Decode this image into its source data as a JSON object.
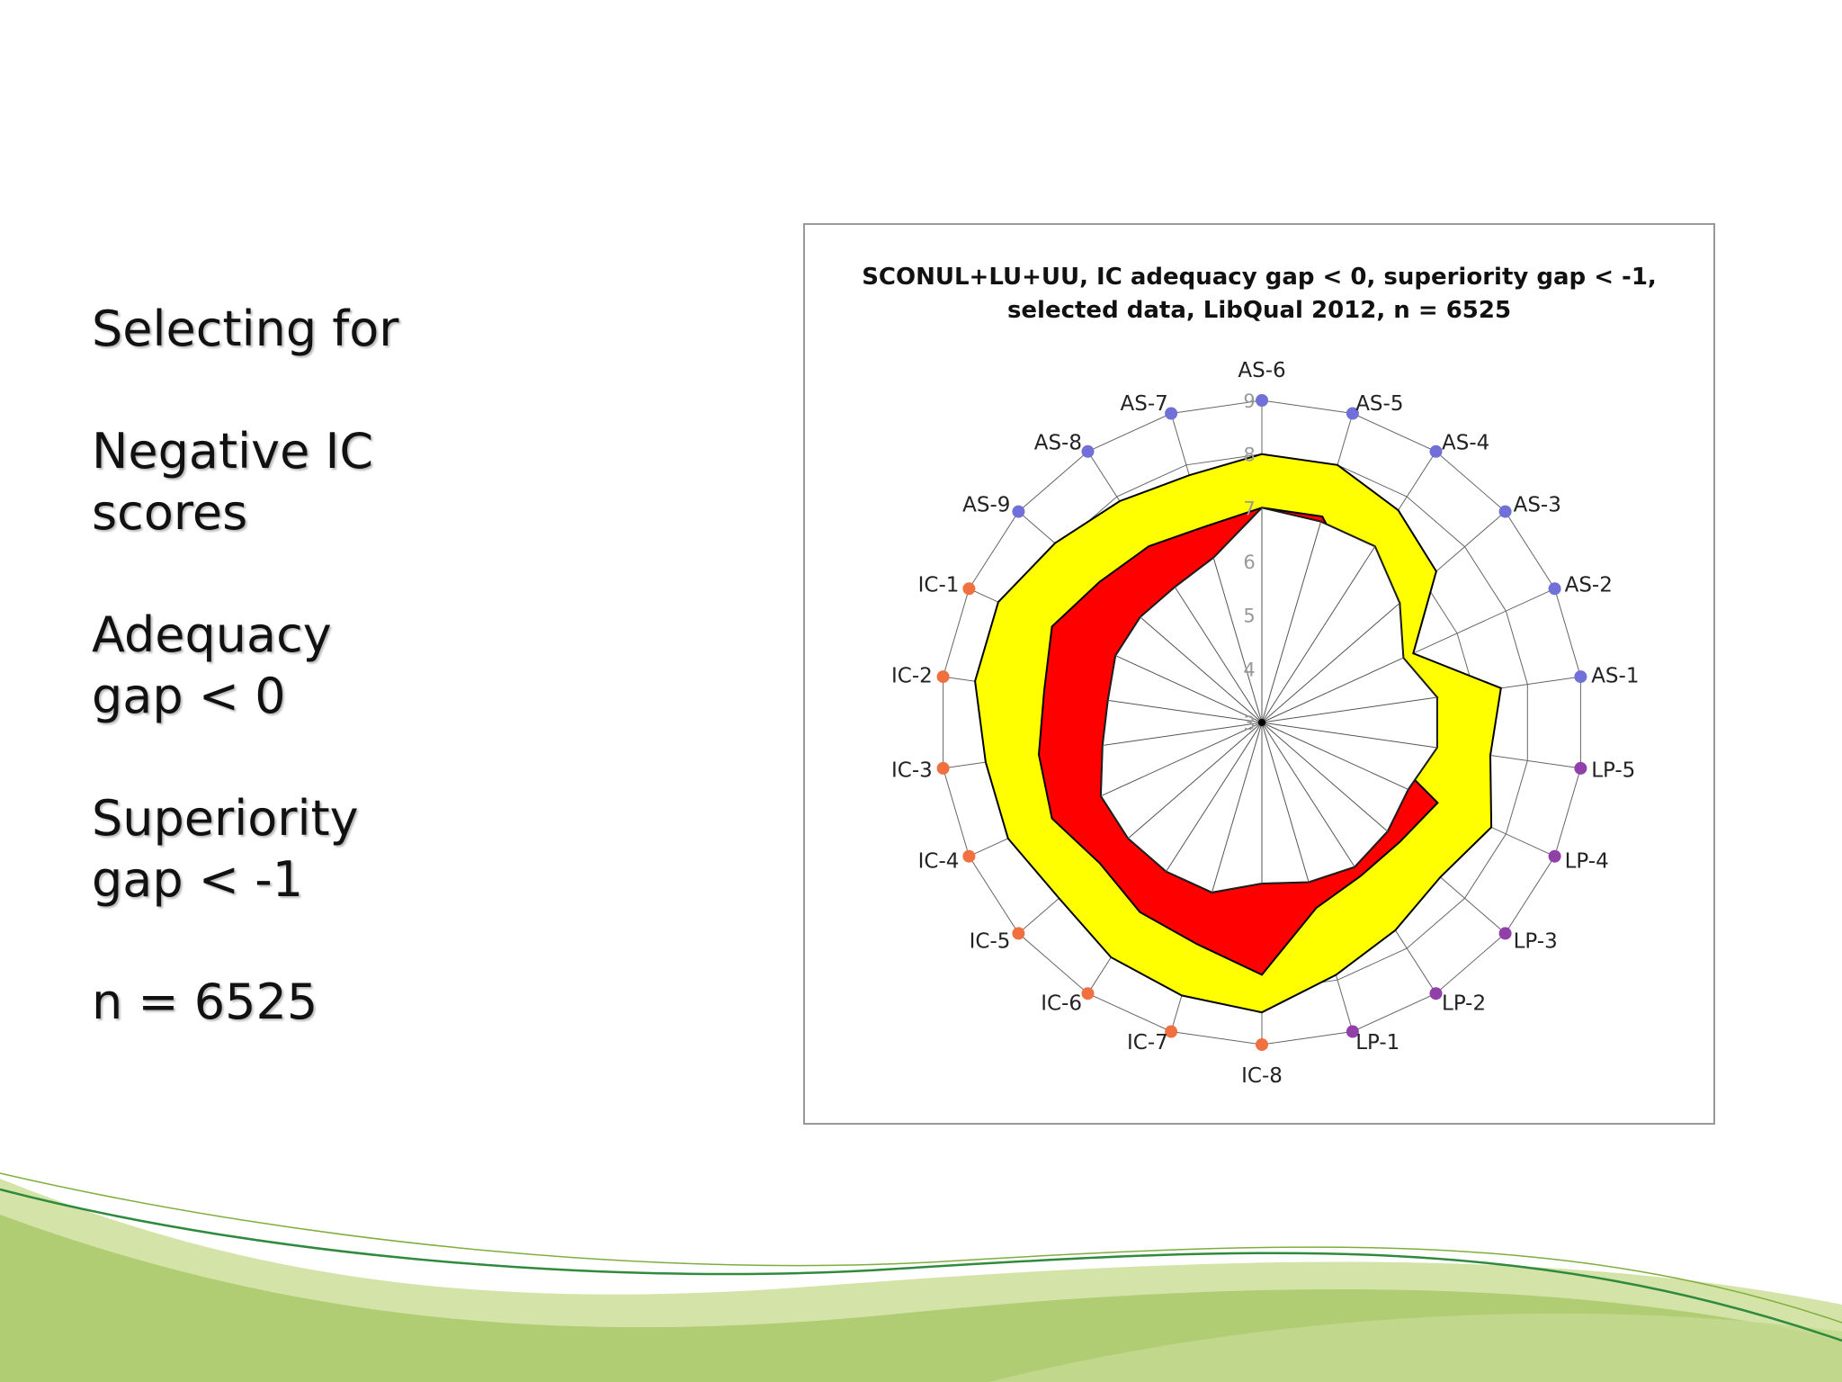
{
  "slide": {
    "blocks": [
      {
        "lines": [
          "Selecting for"
        ]
      },
      {
        "lines": [
          "Negative IC",
          "scores"
        ]
      },
      {
        "lines": [
          "Adequacy",
          "gap < 0"
        ]
      },
      {
        "lines": [
          "Superiority",
          "gap < -1"
        ]
      },
      {
        "lines": [
          "n = 6525"
        ]
      }
    ]
  },
  "colors": {
    "desired_band": "#ffff00",
    "adequacy_gap": "#ff0000",
    "grid": "#666666",
    "axis_label": "#222222",
    "tick_label": "#999999",
    "AS": "#7070d8",
    "IC": "#f07040",
    "LP": "#9040a8",
    "wave_light": "#d4e4a8",
    "wave_mid": "#a9c96b",
    "wave_dark": "#2f8a3e"
  },
  "chart_data": {
    "type": "radar",
    "title_lines": [
      "SCONUL+LU+UU, IC adequacy gap < 0, superiority gap < -1,",
      "selected data, LibQual 2012, n = 6525"
    ],
    "axes": [
      "AS-6",
      "AS-5",
      "AS-4",
      "AS-3",
      "AS-2",
      "AS-1",
      "LP-5",
      "LP-4",
      "LP-3",
      "LP-2",
      "LP-1",
      "IC-8",
      "IC-7",
      "IC-6",
      "IC-5",
      "IC-4",
      "IC-3",
      "IC-2",
      "IC-1",
      "AS-9",
      "AS-8",
      "AS-7"
    ],
    "axis_groups": [
      "AS",
      "AS",
      "AS",
      "AS",
      "AS",
      "AS",
      "LP",
      "LP",
      "LP",
      "LP",
      "LP",
      "IC",
      "IC",
      "IC",
      "IC",
      "IC",
      "IC",
      "IC",
      "IC",
      "AS",
      "AS",
      "AS"
    ],
    "rlim": [
      3,
      9
    ],
    "ticks": [
      3,
      4,
      5,
      6,
      7,
      8,
      9
    ],
    "series": [
      {
        "values": [
          8.0,
          8.0,
          7.7,
          7.3,
          6.1,
          7.5,
          7.3,
          7.7,
          7.4,
          7.6,
          7.9,
          8.4,
          8.3,
          8.2,
          8.0,
          8.2,
          8.2,
          8.4,
          8.4,
          8.1,
          7.9,
          7.8
        ]
      },
      {
        "values": [
          7.0,
          7.0,
          6.2,
          6.4,
          5.8,
          6.3,
          5.1,
          6.6,
          6.4,
          6.4,
          6.6,
          7.7,
          7.3,
          7.2,
          7.0,
          7.3,
          7.2,
          7.1,
          7.3,
          7.0,
          6.9,
          6.8
        ]
      },
      {
        "values": [
          7.0,
          6.9,
          6.9,
          6.4,
          5.9,
          6.3,
          6.3,
          6.0,
          6.1,
          6.2,
          6.1,
          6.0,
          6.3,
          6.3,
          6.3,
          6.3,
          6.0,
          5.9,
          6.0,
          6.0,
          6.0,
          6.2
        ]
      }
    ]
  }
}
